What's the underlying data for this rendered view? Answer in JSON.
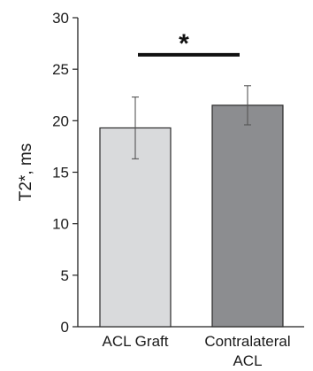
{
  "chart_data": {
    "type": "bar",
    "categories": [
      [
        "ACL Graft"
      ],
      [
        "Contralateral",
        "ACL"
      ]
    ],
    "values": [
      19.3,
      21.5
    ],
    "error": [
      3.0,
      1.9
    ],
    "colors": [
      "#d9dadc",
      "#8c8d90"
    ],
    "ylabel": "T2*, ms",
    "ylim": [
      0,
      30
    ],
    "yticks": [
      0,
      5,
      10,
      15,
      20,
      25,
      30
    ],
    "grid": false,
    "annotation": {
      "text": "*",
      "between": [
        0,
        1
      ],
      "level": 26.4
    }
  }
}
